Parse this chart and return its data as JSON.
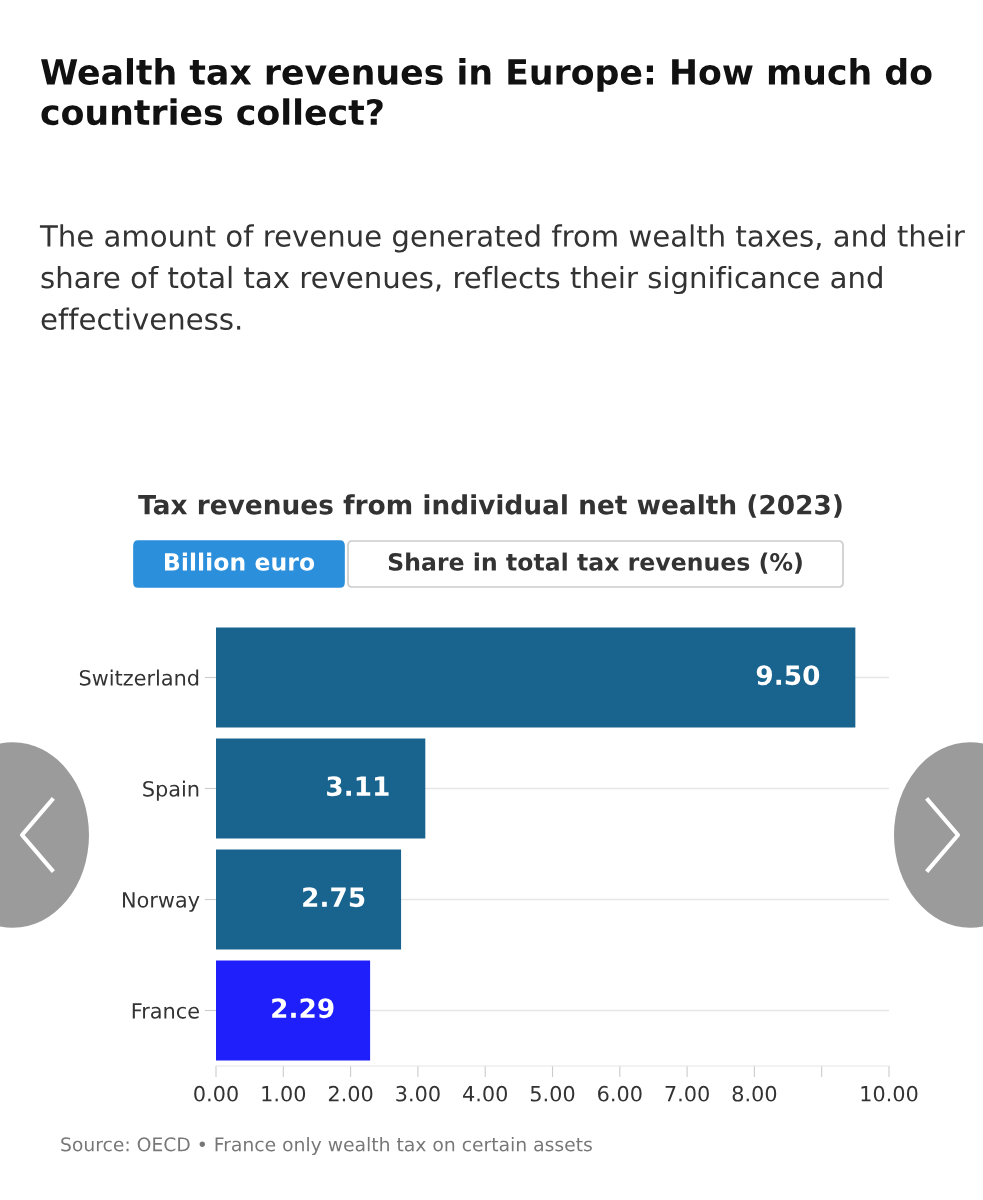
{
  "chart_data": {
    "type": "bar",
    "orientation": "horizontal",
    "title": "Wealth tax revenues in Europe: How much do countries collect?",
    "subtitle": "The amount of revenue generated from wealth taxes, and their share of total tax revenues, reflects their significance and effectiveness.",
    "xlabel": "Tax revenues from individual net wealth (2023)",
    "categories": [
      "Switzerland",
      "Spain",
      "Norway",
      "France"
    ],
    "values": [
      9.5,
      3.11,
      2.75,
      2.29
    ],
    "colors": [
      "#19648f",
      "#19648f",
      "#19648f",
      "#1f1ffb"
    ],
    "value_labels": [
      "9.50",
      "3.11",
      "2.75",
      "2.29"
    ],
    "xlim": [
      0,
      10
    ],
    "xticks": [
      {
        "value": 0,
        "label": "0.00"
      },
      {
        "value": 1,
        "label": "1.00"
      },
      {
        "value": 2,
        "label": "2.00"
      },
      {
        "value": 3,
        "label": "3.00"
      },
      {
        "value": 4,
        "label": "4.00"
      },
      {
        "value": 5,
        "label": "5.00"
      },
      {
        "value": 6,
        "label": "6.00"
      },
      {
        "value": 7,
        "label": "7.00"
      },
      {
        "value": 8,
        "label": "8.00"
      },
      {
        "value": 9,
        "label": null
      },
      {
        "value": 10,
        "label": "10.00"
      }
    ],
    "grid": "y",
    "legend": false,
    "annotations": [
      "Billion euro",
      "Share in total tax revenues (%)",
      "Source: OECD • France only wealth tax on certain assets"
    ]
  }
}
